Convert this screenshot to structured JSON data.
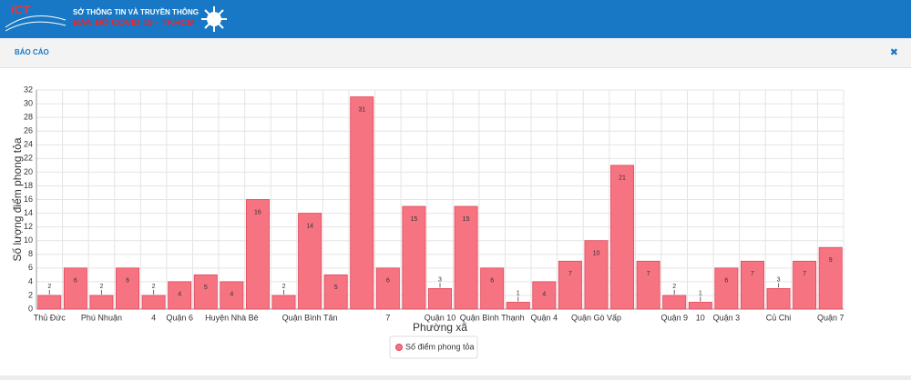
{
  "header": {
    "logo": "ICT",
    "department": "SỞ THÔNG TIN VÀ TRUYỀN THÔNG",
    "app_title": "BẢN ĐỒ COVID 19 - TP.HCM"
  },
  "modal": {
    "title": "BÁO CÁO",
    "close": "✖"
  },
  "chart_data": {
    "type": "bar",
    "x_label": "Phường xã",
    "y_label": "Số lượng điểm phong tỏa",
    "categories": [
      "Thủ Đức",
      null,
      "Phú Nhuận",
      null,
      "4",
      "Quận 6",
      null,
      "Huyện Nhà Bè",
      null,
      null,
      "Quận Bình Tân",
      null,
      null,
      "7",
      null,
      "Quận 10",
      null,
      "Quận Bình Thạnh",
      null,
      "Quận 4",
      null,
      "Quận Gò Vấp",
      null,
      null,
      "Quận 9",
      "10",
      "Quận 3",
      null,
      "Củ Chi",
      null,
      "Quận 7"
    ],
    "series": [
      {
        "name": "Số điểm phong tỏa",
        "color": "#f67382",
        "values": [
          2,
          6,
          2,
          6,
          2,
          4,
          5,
          4,
          16,
          2,
          14,
          5,
          31,
          6,
          15,
          3,
          15,
          6,
          1,
          4,
          7,
          10,
          21,
          7,
          2,
          1,
          6,
          7,
          3,
          7,
          9
        ]
      }
    ],
    "ylim": [
      0,
      32
    ],
    "yticks": [
      0,
      2,
      4,
      6,
      8,
      10,
      12,
      14,
      16,
      18,
      20,
      22,
      24,
      26,
      28,
      30,
      32
    ],
    "grid": true,
    "legend": "bottom"
  }
}
